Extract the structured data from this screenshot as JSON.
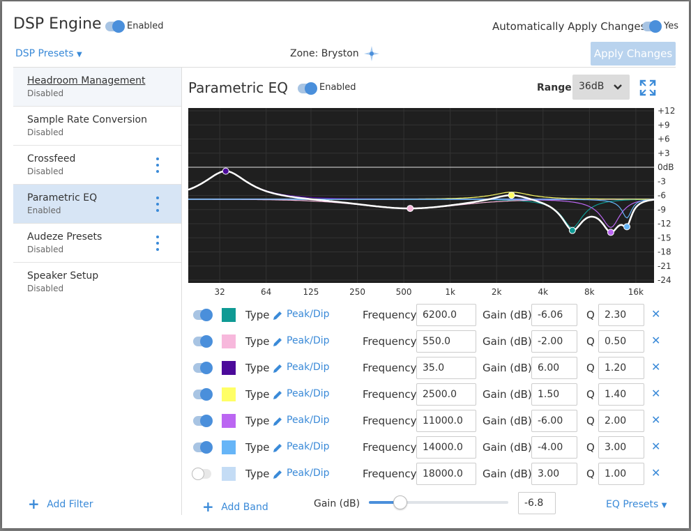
{
  "header": {
    "title": "DSP Engine",
    "enabled_label": "Enabled",
    "auto_apply_label": "Automatically Apply Changes",
    "auto_apply_value": "Yes",
    "presets_label": "DSP Presets",
    "zone_label": "Zone: Bryston",
    "apply_button": "Apply Changes"
  },
  "sidebar": {
    "items": [
      {
        "name": "Headroom Management",
        "status": "Disabled"
      },
      {
        "name": "Sample Rate Conversion",
        "status": "Disabled"
      },
      {
        "name": "Crossfeed",
        "status": "Disabled"
      },
      {
        "name": "Parametric EQ",
        "status": "Enabled"
      },
      {
        "name": "Audeze Presets",
        "status": "Disabled"
      },
      {
        "name": "Speaker Setup",
        "status": "Disabled"
      }
    ],
    "add_filter": "Add Filter"
  },
  "eq": {
    "title": "Parametric EQ",
    "enabled_label": "Enabled",
    "range_label": "Range:",
    "range_value": "36dB",
    "y_ticks": [
      "+12",
      "+9",
      "+6",
      "+3",
      "0dB",
      "-3",
      "-6",
      "-9",
      "-12",
      "-15",
      "-18",
      "-21",
      "-24"
    ],
    "x_ticks": [
      "32",
      "64",
      "125",
      "250",
      "500",
      "1k",
      "2k",
      "4k",
      "8k",
      "16k"
    ],
    "type_label": "Type",
    "frequency_label": "Frequency",
    "gain_label": "Gain (dB)",
    "q_label": "Q",
    "bands": [
      {
        "color": "#0f9a94",
        "enabled": true,
        "type": "Peak/Dip",
        "frequency": "6200.0",
        "gain": "-6.06",
        "q": "2.30"
      },
      {
        "color": "#f7b8dc",
        "enabled": true,
        "type": "Peak/Dip",
        "frequency": "550.0",
        "gain": "-2.00",
        "q": "0.50"
      },
      {
        "color": "#4b0a9a",
        "enabled": true,
        "type": "Peak/Dip",
        "frequency": "35.0",
        "gain": "6.00",
        "q": "1.20"
      },
      {
        "color": "#ffff66",
        "enabled": true,
        "type": "Peak/Dip",
        "frequency": "2500.0",
        "gain": "1.50",
        "q": "1.40"
      },
      {
        "color": "#bb66f2",
        "enabled": true,
        "type": "Peak/Dip",
        "frequency": "11000.0",
        "gain": "-6.00",
        "q": "2.00"
      },
      {
        "color": "#66b5f7",
        "enabled": true,
        "type": "Peak/Dip",
        "frequency": "14000.0",
        "gain": "-4.00",
        "q": "3.00"
      },
      {
        "color": "#c4dcf5",
        "enabled": false,
        "type": "Peak/Dip",
        "frequency": "18000.0",
        "gain": "3.00",
        "q": "1.00"
      }
    ],
    "add_band": "Add Band",
    "preamp_gain_label": "Gain (dB)",
    "preamp_gain_value": "-6.8",
    "preamp_slider_fraction": 0.22,
    "eq_presets": "EQ Presets"
  },
  "colors": {
    "accent": "#3a8ad8",
    "plot_bg": "#1f1f1f",
    "selected_item": "#d7e5f5"
  }
}
